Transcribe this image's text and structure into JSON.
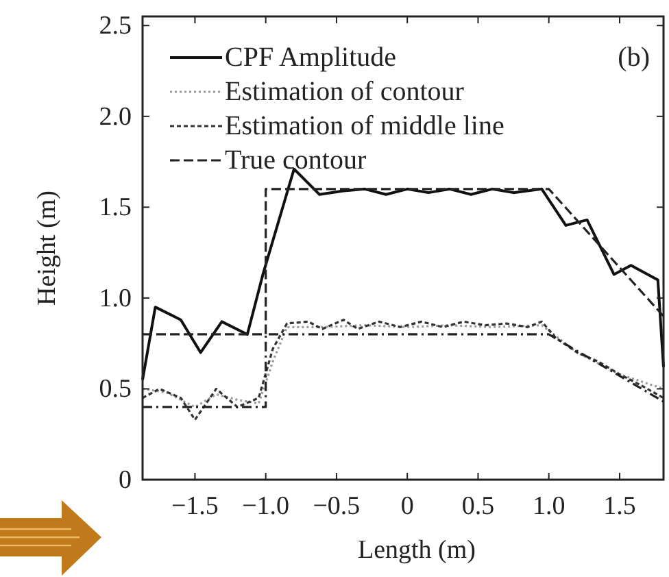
{
  "chart_data": {
    "type": "line",
    "xlabel": "Length (m)",
    "ylabel": "Height (m)",
    "annotations": [
      "(b)"
    ],
    "xlim": [
      -1.87,
      1.81
    ],
    "xticks": [
      {
        "value": -1.5,
        "label": "−1.5"
      },
      {
        "value": -1,
        "label": "−1.0"
      },
      {
        "value": -0.5,
        "label": "−0.5"
      },
      0,
      0.5,
      {
        "value": 1,
        "label": "1.0"
      },
      1.5
    ],
    "ylim": [
      0,
      2.55
    ],
    "yticks": [
      0,
      0.5,
      {
        "value": 1,
        "label": "1.0"
      },
      1.5,
      {
        "value": 2,
        "label": "2.0"
      },
      2.5
    ],
    "legend": "top left",
    "grid": false,
    "series": [
      {
        "name": "CPF Amplitude",
        "color": "#111111",
        "line_style": "solid",
        "x": [
          -1.87,
          -1.78,
          -1.6,
          -1.46,
          -1.31,
          -1.13,
          -1.02,
          -0.8,
          -0.62,
          -0.45,
          -0.3,
          -0.15,
          0,
          0.15,
          0.3,
          0.45,
          0.6,
          0.75,
          0.95,
          1.12,
          1.27,
          1.46,
          1.58,
          1.77,
          1.81
        ],
        "values": [
          0.55,
          0.95,
          0.88,
          0.7,
          0.87,
          0.8,
          1.13,
          1.71,
          1.57,
          1.59,
          1.6,
          1.57,
          1.6,
          1.58,
          1.6,
          1.57,
          1.6,
          1.58,
          1.6,
          1.4,
          1.43,
          1.13,
          1.18,
          1.1,
          0.62
        ]
      },
      {
        "name": "Estimation of contour",
        "color": "#9a9a9a",
        "line_style": "dotted",
        "x": [
          -1.87,
          -1.7,
          -1.5,
          -1.35,
          -1.2,
          -1.05,
          -0.95,
          -0.85,
          -0.6,
          -0.3,
          0,
          0.3,
          0.6,
          0.95,
          1.2,
          1.5,
          1.81
        ],
        "values": [
          0.5,
          0.48,
          0.4,
          0.47,
          0.44,
          0.42,
          0.65,
          0.84,
          0.84,
          0.85,
          0.84,
          0.85,
          0.84,
          0.85,
          0.7,
          0.58,
          0.5
        ]
      },
      {
        "name": "Estimation of middle line",
        "color": "#333333",
        "line_style": "dashed",
        "x": [
          -1.87,
          -1.75,
          -1.6,
          -1.5,
          -1.35,
          -1.2,
          -1.05,
          -0.95,
          -0.85,
          -0.7,
          -0.6,
          -0.45,
          -0.35,
          -0.2,
          -0.05,
          0.1,
          0.25,
          0.4,
          0.55,
          0.7,
          0.85,
          0.95,
          1.05,
          1.2,
          1.35,
          1.5,
          1.65,
          1.81
        ],
        "values": [
          0.45,
          0.5,
          0.45,
          0.33,
          0.5,
          0.4,
          0.45,
          0.72,
          0.86,
          0.87,
          0.83,
          0.88,
          0.83,
          0.87,
          0.84,
          0.87,
          0.84,
          0.87,
          0.85,
          0.86,
          0.84,
          0.87,
          0.78,
          0.7,
          0.65,
          0.58,
          0.52,
          0.45
        ]
      },
      {
        "name": "True contour",
        "color": "#222222",
        "line_style": "dashed",
        "x": [
          -1.87,
          -1.0,
          -1.0,
          1.0,
          1.81
        ],
        "values": [
          0.8,
          0.8,
          1.6,
          1.6,
          0.9
        ]
      },
      {
        "color": "#222222",
        "line_style": "dashdot",
        "x": [
          -1.87,
          -1.0,
          -1.0,
          1.0,
          1.81
        ],
        "values": [
          0.4,
          0.4,
          0.8,
          0.8,
          0.43
        ]
      }
    ]
  }
}
